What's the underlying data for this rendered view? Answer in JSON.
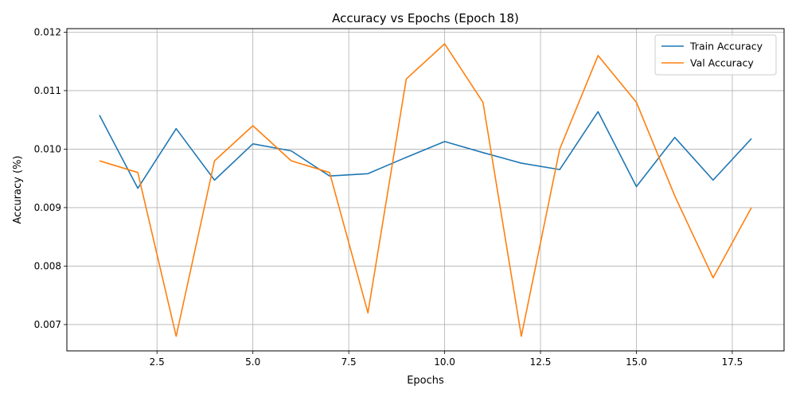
{
  "chart_data": {
    "type": "line",
    "title": "Accuracy vs Epochs (Epoch 18)",
    "xlabel": "Epochs",
    "ylabel": "Accuracy (%)",
    "x": [
      1,
      2,
      3,
      4,
      5,
      6,
      7,
      8,
      9,
      10,
      11,
      12,
      13,
      14,
      15,
      16,
      17,
      18
    ],
    "xlim": [
      0.15,
      18.85
    ],
    "ylim": [
      0.00655,
      0.01206
    ],
    "xticks": [
      2.5,
      5.0,
      7.5,
      10.0,
      12.5,
      15.0,
      17.5
    ],
    "xtick_labels": [
      "2.5",
      "5.0",
      "7.5",
      "10.0",
      "12.5",
      "15.0",
      "17.5"
    ],
    "yticks": [
      0.007,
      0.008,
      0.009,
      0.01,
      0.011,
      0.012
    ],
    "ytick_labels": [
      "0.007",
      "0.008",
      "0.009",
      "0.010",
      "0.011",
      "0.012"
    ],
    "grid": true,
    "legend_position": "top-right",
    "series": [
      {
        "name": "Train Accuracy",
        "color": "#1f77b4",
        "values": [
          0.01058,
          0.00933,
          0.01035,
          0.00947,
          0.01009,
          0.00997,
          0.00954,
          0.00958,
          0.00986,
          0.01013,
          0.00994,
          0.00976,
          0.00965,
          0.01064,
          0.00936,
          0.0102,
          0.00947,
          0.01018
        ]
      },
      {
        "name": "Val Accuracy",
        "color": "#ff7f0e",
        "values": [
          0.0098,
          0.0096,
          0.0068,
          0.0098,
          0.0104,
          0.0098,
          0.0096,
          0.0072,
          0.0112,
          0.0118,
          0.0108,
          0.0068,
          0.01,
          0.0116,
          0.0108,
          0.0092,
          0.0078,
          0.009
        ]
      }
    ]
  }
}
